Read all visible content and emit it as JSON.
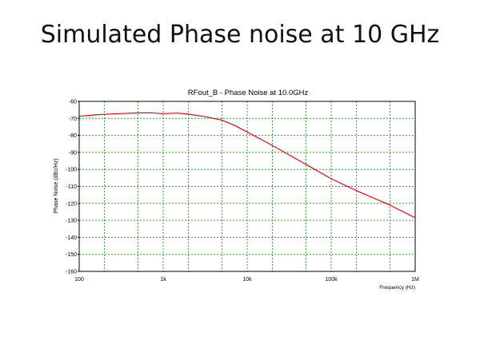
{
  "slide": {
    "title": "Simulated Phase noise at 10 GHz"
  },
  "chart_data": {
    "type": "line",
    "title": "RFout_B - Phase Noise at 10.0GHz",
    "xlabel": "Frequency (Hz)",
    "ylabel": "Phase Noise (dBc/Hz)",
    "xscale": "log",
    "xlim": [
      100,
      1000000
    ],
    "ylim": [
      -160,
      -60
    ],
    "x_ticks": [
      {
        "value": 100,
        "label": "100"
      },
      {
        "value": 1000,
        "label": "1k"
      },
      {
        "value": 10000,
        "label": "10k"
      },
      {
        "value": 100000,
        "label": "100k"
      },
      {
        "value": 1000000,
        "label": "1M"
      }
    ],
    "x_minor_ticks": [
      200,
      500,
      2000,
      5000,
      20000,
      50000,
      200000,
      500000
    ],
    "y_ticks": [
      -60,
      -70,
      -80,
      -90,
      -100,
      -110,
      -120,
      -130,
      -140,
      -150,
      -160
    ],
    "grid": true,
    "colors": {
      "series": "#e8001c",
      "grid": "#2e9a2e",
      "frame": "#000000"
    },
    "series": [
      {
        "x": [
          100,
          150,
          200,
          300,
          500,
          700,
          1000,
          1500,
          2000,
          3000,
          5000,
          7000,
          10000,
          20000,
          50000,
          100000,
          200000,
          500000,
          1000000
        ],
        "y": [
          -68.8,
          -68.0,
          -67.6,
          -67.2,
          -66.8,
          -66.7,
          -67.2,
          -66.9,
          -67.5,
          -68.8,
          -71.0,
          -74.0,
          -78.0,
          -86.0,
          -97.0,
          -105.5,
          -112.5,
          -121.0,
          -128.5
        ]
      }
    ]
  }
}
